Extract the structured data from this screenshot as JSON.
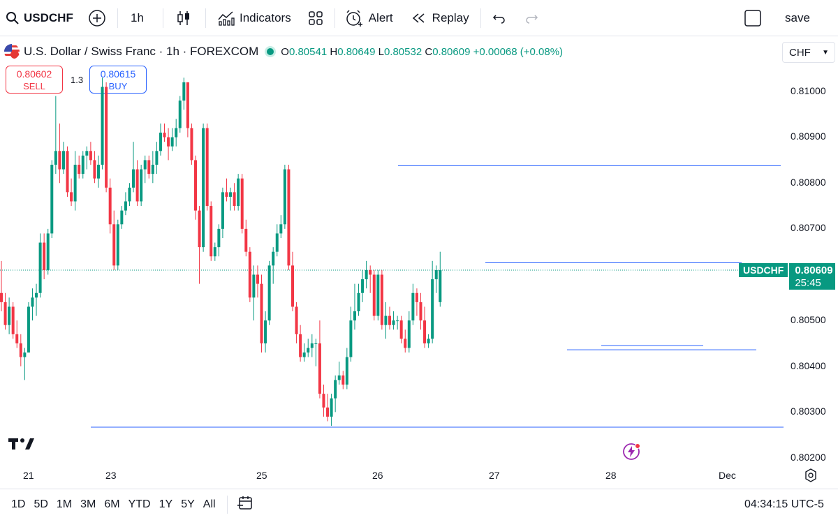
{
  "toolbar": {
    "symbol": "USDCHF",
    "interval": "1h",
    "indicators_label": "Indicators",
    "alert_label": "Alert",
    "replay_label": "Replay",
    "save_label": "save"
  },
  "legend": {
    "title": "U.S. Dollar / Swiss Franc · 1h · FOREXCOM",
    "o_key": "O",
    "o_val": "0.80541",
    "h_key": "H",
    "h_val": "0.80649",
    "l_key": "L",
    "l_val": "0.80532",
    "c_key": "C",
    "c_val": "0.80609",
    "change": "+0.00068 (+0.08%)"
  },
  "trade": {
    "sell_price": "0.80602",
    "sell_label": "SELL",
    "spread": "1.3",
    "buy_price": "0.80615",
    "buy_label": "BUY"
  },
  "currency_select": "CHF",
  "price_axis": [
    "0.81000",
    "0.80900",
    "0.80800",
    "0.80700",
    "0.80500",
    "0.80400",
    "0.80300",
    "0.80200"
  ],
  "time_axis": [
    "21",
    "23",
    "25",
    "26",
    "27",
    "28",
    "Dec"
  ],
  "last_price_tag": {
    "symbol": "USDCHF",
    "price": "0.80609",
    "countdown": "25:45"
  },
  "ranges": [
    "1D",
    "5D",
    "1M",
    "3M",
    "6M",
    "YTD",
    "1Y",
    "5Y",
    "All"
  ],
  "clock": "04:34:15 UTC-5",
  "colors": {
    "up": "#089981",
    "down": "#f23645",
    "line": "#2962ff"
  },
  "chart_data": {
    "type": "candlestick",
    "title": "U.S. Dollar / Swiss Franc · 1h · FOREXCOM",
    "ylim": [
      0.8019,
      0.8114
    ],
    "horizontal_lines": [
      0.80838,
      0.80626,
      0.80436,
      0.80267
    ],
    "candles": [
      [
        0.8056,
        0.8063,
        0.8052,
        0.8054
      ],
      [
        0.8054,
        0.8056,
        0.8048,
        0.8049
      ],
      [
        0.8049,
        0.8055,
        0.8047,
        0.8053
      ],
      [
        0.8053,
        0.8054,
        0.8046,
        0.8047
      ],
      [
        0.8047,
        0.805,
        0.8044,
        0.8045
      ],
      [
        0.8045,
        0.8047,
        0.804,
        0.8042
      ],
      [
        0.8042,
        0.8044,
        0.8037,
        0.8043
      ],
      [
        0.8043,
        0.8054,
        0.8043,
        0.8053
      ],
      [
        0.8053,
        0.8057,
        0.805,
        0.8055
      ],
      [
        0.8055,
        0.8058,
        0.8051,
        0.8056
      ],
      [
        0.8056,
        0.8069,
        0.8055,
        0.8067
      ],
      [
        0.8067,
        0.8069,
        0.8059,
        0.8061
      ],
      [
        0.8061,
        0.807,
        0.806,
        0.8069
      ],
      [
        0.8069,
        0.8085,
        0.8068,
        0.8084
      ],
      [
        0.8084,
        0.8099,
        0.8082,
        0.8087
      ],
      [
        0.8087,
        0.8093,
        0.808,
        0.8083
      ],
      [
        0.8083,
        0.8089,
        0.8082,
        0.8087
      ],
      [
        0.8087,
        0.8088,
        0.8077,
        0.8078
      ],
      [
        0.8078,
        0.8081,
        0.8075,
        0.8076
      ],
      [
        0.8076,
        0.8087,
        0.8074,
        0.8084
      ],
      [
        0.8084,
        0.8086,
        0.8081,
        0.8082
      ],
      [
        0.8082,
        0.8087,
        0.8081,
        0.8086
      ],
      [
        0.8086,
        0.8088,
        0.8083,
        0.8087
      ],
      [
        0.8087,
        0.8089,
        0.8084,
        0.8085
      ],
      [
        0.8085,
        0.8087,
        0.808,
        0.8081
      ],
      [
        0.8081,
        0.8086,
        0.8079,
        0.8084
      ],
      [
        0.8084,
        0.8103,
        0.8083,
        0.8101
      ],
      [
        0.8101,
        0.8102,
        0.8078,
        0.8079
      ],
      [
        0.8079,
        0.8081,
        0.8069,
        0.8071
      ],
      [
        0.8071,
        0.8074,
        0.8061,
        0.8062
      ],
      [
        0.8062,
        0.8072,
        0.8061,
        0.8071
      ],
      [
        0.8071,
        0.8075,
        0.807,
        0.8074
      ],
      [
        0.8074,
        0.8078,
        0.8073,
        0.8076
      ],
      [
        0.8076,
        0.808,
        0.8075,
        0.8079
      ],
      [
        0.8079,
        0.8089,
        0.8078,
        0.8083
      ],
      [
        0.8083,
        0.8085,
        0.8075,
        0.8076
      ],
      [
        0.8076,
        0.8084,
        0.8075,
        0.8083
      ],
      [
        0.8083,
        0.8086,
        0.808,
        0.8085
      ],
      [
        0.8085,
        0.8086,
        0.8081,
        0.8082
      ],
      [
        0.8082,
        0.8087,
        0.808,
        0.8084
      ],
      [
        0.8084,
        0.8089,
        0.8082,
        0.8087
      ],
      [
        0.8087,
        0.8093,
        0.8086,
        0.8091
      ],
      [
        0.8091,
        0.8093,
        0.8089,
        0.809
      ],
      [
        0.809,
        0.8092,
        0.8085,
        0.8088
      ],
      [
        0.8088,
        0.8092,
        0.8087,
        0.809
      ],
      [
        0.809,
        0.8094,
        0.8088,
        0.8092
      ],
      [
        0.8092,
        0.8099,
        0.8091,
        0.8098
      ],
      [
        0.8098,
        0.8103,
        0.8096,
        0.8102
      ],
      [
        0.8102,
        0.8102,
        0.809,
        0.8092
      ],
      [
        0.8092,
        0.8093,
        0.8084,
        0.8085
      ],
      [
        0.8085,
        0.8086,
        0.8072,
        0.8074
      ],
      [
        0.8074,
        0.8075,
        0.8058,
        0.8066
      ],
      [
        0.8066,
        0.8093,
        0.8065,
        0.8092
      ],
      [
        0.8092,
        0.8093,
        0.8074,
        0.8075
      ],
      [
        0.8075,
        0.8076,
        0.8063,
        0.8064
      ],
      [
        0.8064,
        0.8067,
        0.8063,
        0.8066
      ],
      [
        0.8066,
        0.8071,
        0.8064,
        0.807
      ],
      [
        0.807,
        0.8079,
        0.8068,
        0.8078
      ],
      [
        0.8078,
        0.8081,
        0.8076,
        0.8077
      ],
      [
        0.8077,
        0.8079,
        0.8074,
        0.8078
      ],
      [
        0.8078,
        0.808,
        0.8074,
        0.8075
      ],
      [
        0.8075,
        0.8082,
        0.8074,
        0.8081
      ],
      [
        0.8081,
        0.8082,
        0.8069,
        0.807
      ],
      [
        0.807,
        0.8072,
        0.8064,
        0.8065
      ],
      [
        0.8065,
        0.8066,
        0.8054,
        0.8055
      ],
      [
        0.8055,
        0.8062,
        0.805,
        0.806
      ],
      [
        0.806,
        0.8062,
        0.8055,
        0.8058
      ],
      [
        0.8058,
        0.806,
        0.8043,
        0.8045
      ],
      [
        0.8045,
        0.8052,
        0.8043,
        0.805
      ],
      [
        0.805,
        0.8063,
        0.8049,
        0.8062
      ],
      [
        0.8062,
        0.8066,
        0.8058,
        0.8065
      ],
      [
        0.8065,
        0.8071,
        0.8064,
        0.8069
      ],
      [
        0.8069,
        0.8073,
        0.8068,
        0.8071
      ],
      [
        0.8071,
        0.8084,
        0.807,
        0.8083
      ],
      [
        0.8083,
        0.8084,
        0.8061,
        0.8062
      ],
      [
        0.8062,
        0.8065,
        0.8052,
        0.8053
      ],
      [
        0.8053,
        0.8054,
        0.8045,
        0.8047
      ],
      [
        0.8047,
        0.8049,
        0.8041,
        0.8042
      ],
      [
        0.8042,
        0.8045,
        0.8041,
        0.8043
      ],
      [
        0.8043,
        0.8046,
        0.8042,
        0.8044
      ],
      [
        0.8044,
        0.8047,
        0.8042,
        0.8045
      ],
      [
        0.8045,
        0.8046,
        0.804,
        0.8045
      ],
      [
        0.8045,
        0.805,
        0.8033,
        0.8034
      ],
      [
        0.8034,
        0.8036,
        0.8029,
        0.8031
      ],
      [
        0.8031,
        0.8034,
        0.8028,
        0.8029
      ],
      [
        0.8029,
        0.8034,
        0.8027,
        0.8033
      ],
      [
        0.8033,
        0.8038,
        0.803,
        0.8037
      ],
      [
        0.8037,
        0.8041,
        0.8036,
        0.8038
      ],
      [
        0.8038,
        0.8039,
        0.8035,
        0.8036
      ],
      [
        0.8036,
        0.8044,
        0.8035,
        0.8042
      ],
      [
        0.8042,
        0.8053,
        0.8041,
        0.805
      ],
      [
        0.805,
        0.8058,
        0.8048,
        0.8052
      ],
      [
        0.8052,
        0.8058,
        0.8051,
        0.8056
      ],
      [
        0.8056,
        0.8061,
        0.8054,
        0.8059
      ],
      [
        0.8059,
        0.8063,
        0.8057,
        0.8061
      ],
      [
        0.8061,
        0.8062,
        0.8056,
        0.806
      ],
      [
        0.806,
        0.8061,
        0.805,
        0.8051
      ],
      [
        0.8051,
        0.8061,
        0.805,
        0.806
      ],
      [
        0.806,
        0.8061,
        0.8048,
        0.8049
      ],
      [
        0.8049,
        0.8054,
        0.8046,
        0.8051
      ],
      [
        0.8051,
        0.8053,
        0.8048,
        0.8049
      ],
      [
        0.8049,
        0.8052,
        0.8048,
        0.805
      ],
      [
        0.805,
        0.8051,
        0.8048,
        0.805
      ],
      [
        0.805,
        0.8051,
        0.8045,
        0.8046
      ],
      [
        0.8046,
        0.8048,
        0.8043,
        0.8044
      ],
      [
        0.8044,
        0.8052,
        0.8043,
        0.805
      ],
      [
        0.805,
        0.8058,
        0.8049,
        0.8056
      ],
      [
        0.8056,
        0.8057,
        0.8051,
        0.8054
      ],
      [
        0.8054,
        0.8056,
        0.8048,
        0.805
      ],
      [
        0.805,
        0.8053,
        0.8044,
        0.8045
      ],
      [
        0.8045,
        0.8047,
        0.8044,
        0.8046
      ],
      [
        0.8046,
        0.8063,
        0.8045,
        0.8059
      ],
      [
        0.8059,
        0.8062,
        0.8056,
        0.8061
      ],
      [
        0.8054,
        0.8065,
        0.8053,
        0.8061
      ]
    ]
  }
}
